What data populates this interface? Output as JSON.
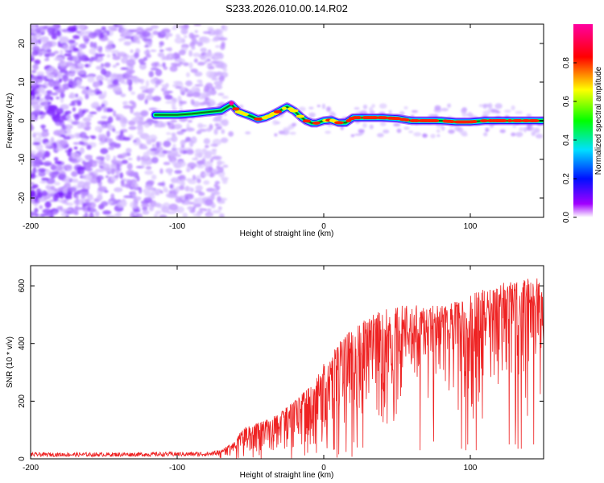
{
  "figure": {
    "title": "S233.2026.010.00.14.R02"
  },
  "chart_data": [
    {
      "type": "heatmap",
      "title": "S233.2026.010.00.14.R02",
      "xlabel": "Height of straight line (km)",
      "ylabel": "Frequency (Hz)",
      "xlim": [
        -200,
        150
      ],
      "ylim": [
        -25,
        25
      ],
      "xticks": [
        -200,
        -100,
        0,
        100
      ],
      "yticks": [
        -20,
        -10,
        0,
        10,
        20
      ],
      "grid": false,
      "ridge": {
        "description": "high-amplitude carrier trace (frequency vs height)",
        "x": [
          -115,
          -100,
          -90,
          -80,
          -70,
          -63,
          -58,
          -50,
          -45,
          -40,
          -35,
          -30,
          -25,
          -20,
          -15,
          -12,
          -8,
          -5,
          0,
          5,
          10,
          15,
          20,
          30,
          40,
          50,
          60,
          70,
          80,
          90,
          100,
          110,
          120,
          130,
          140,
          150
        ],
        "y": [
          1.5,
          1.5,
          1.8,
          2.2,
          2.6,
          4.2,
          2.3,
          1.2,
          0.4,
          0.8,
          1.6,
          2.6,
          3.6,
          2.5,
          0.8,
          0,
          -0.6,
          -0.6,
          0,
          0.2,
          -0.5,
          -0.5,
          0.8,
          0.8,
          0.8,
          0.6,
          0,
          0,
          0,
          -0.3,
          -0.3,
          0,
          0,
          0,
          0,
          0
        ]
      },
      "colorbar": {
        "label": "Normalized spectral amplitude",
        "range": [
          0,
          1
        ],
        "ticks": [
          "0.0",
          "0.2",
          "0.4",
          "0.6",
          "0.8"
        ],
        "colors": [
          "#ffffff",
          "#a100ff",
          "#0010ff",
          "#00e0ff",
          "#00ff00",
          "#ffff00",
          "#ff0000",
          "#ff00a0"
        ]
      },
      "noise_region": {
        "x_from": -200,
        "x_to": -75,
        "note": "scattered low-amplitude noise"
      }
    },
    {
      "type": "line",
      "xlabel": "Height of straight line (km)",
      "ylabel": "SNR (10 * v/v)",
      "xlim": [
        -200,
        150
      ],
      "ylim": [
        0,
        670
      ],
      "xticks": [
        -200,
        -100,
        0,
        100
      ],
      "yticks": [
        0,
        200,
        400,
        600
      ],
      "grid": false,
      "color": "#ee2222",
      "series": [
        {
          "name": "SNR",
          "x": [
            -200,
            -150,
            -100,
            -80,
            -70,
            -60,
            -55,
            -50,
            -40,
            -30,
            -20,
            -10,
            0,
            10,
            20,
            30,
            40,
            50,
            60,
            70,
            80,
            90,
            100,
            110,
            120,
            130,
            140,
            150
          ],
          "envelope": [
            22,
            22,
            24,
            25,
            30,
            65,
            110,
            115,
            135,
            160,
            200,
            250,
            330,
            400,
            455,
            495,
            515,
            530,
            535,
            535,
            530,
            545,
            570,
            590,
            610,
            615,
            625,
            630
          ]
        }
      ],
      "dropouts": {
        "x_from": 60,
        "x_to": 150,
        "min_values": [
          170,
          160,
          45,
          140,
          60,
          35,
          50,
          30,
          40,
          30
        ],
        "note": "deep intermittent dips to near zero"
      }
    }
  ]
}
